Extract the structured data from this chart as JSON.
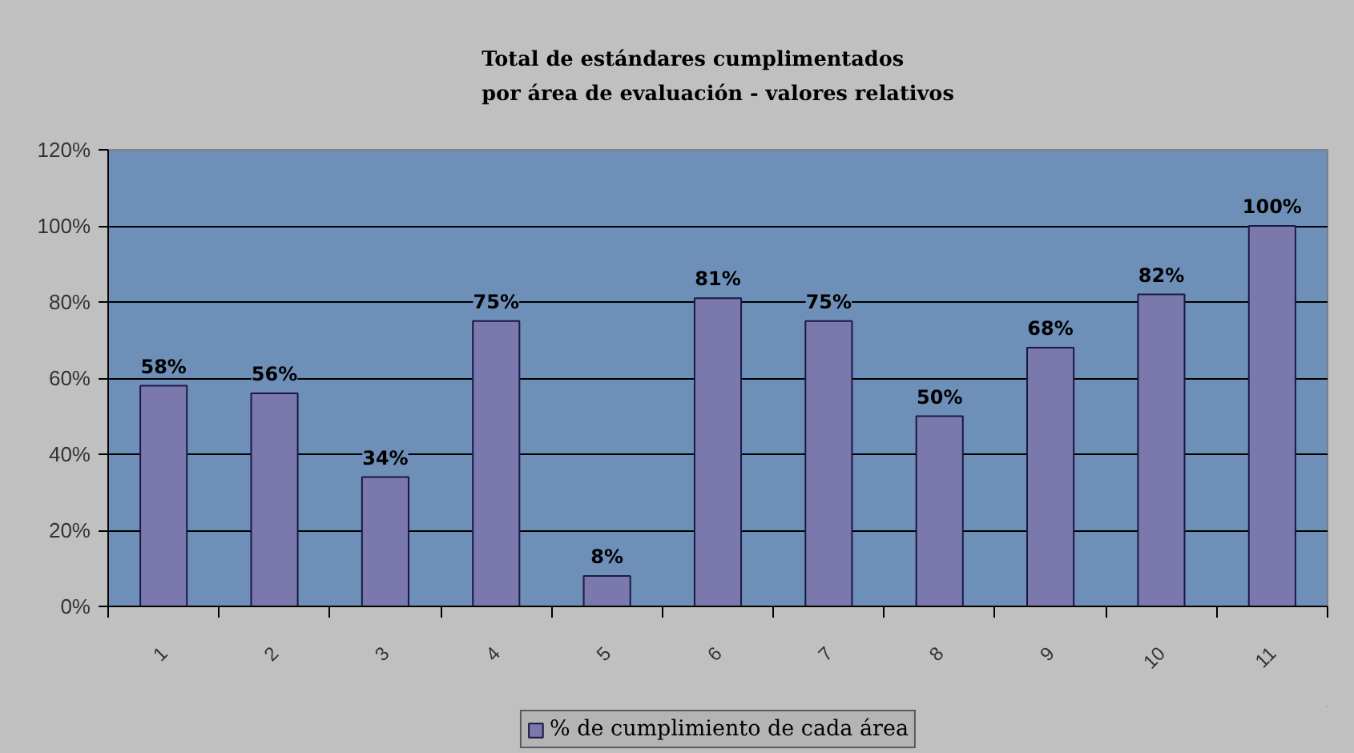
{
  "chart_data": {
    "type": "bar",
    "title": "Total de estándares cumplimentados\npor área de evaluación - valores relativos",
    "categories": [
      "1",
      "2",
      "3",
      "4",
      "5",
      "6",
      "7",
      "8",
      "9",
      "10",
      "11"
    ],
    "series": [
      {
        "name": "% de cumplimiento de cada área",
        "color": "#7a78ad",
        "values": [
          58,
          56,
          34,
          75,
          8,
          81,
          75,
          50,
          68,
          82,
          100
        ],
        "value_labels": [
          "58%",
          "56%",
          "34%",
          "75%",
          "8%",
          "81%",
          "75%",
          "50%",
          "68%",
          "82%",
          "100%"
        ]
      }
    ],
    "ylim": [
      0,
      120
    ],
    "yticks": [
      {
        "value": 0,
        "label": "0%"
      },
      {
        "value": 20,
        "label": "20%"
      },
      {
        "value": 40,
        "label": "40%"
      },
      {
        "value": 60,
        "label": "60%"
      },
      {
        "value": 80,
        "label": "80%"
      },
      {
        "value": 100,
        "label": "100%"
      },
      {
        "value": 120,
        "label": "120%"
      }
    ],
    "grid": "y",
    "legend": "bottom"
  }
}
